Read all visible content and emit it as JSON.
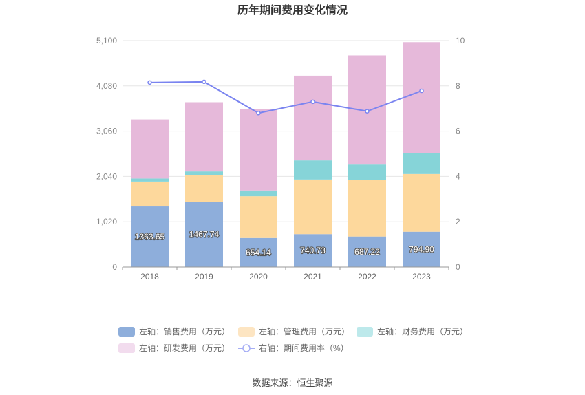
{
  "chart_data": {
    "type": "bar",
    "title": "历年期间费用变化情况",
    "categories": [
      "2018",
      "2019",
      "2020",
      "2021",
      "2022",
      "2023"
    ],
    "y_left": {
      "ticks": [
        "0",
        "1,020",
        "2,040",
        "3,060",
        "4,080",
        "5,100"
      ],
      "ylim": [
        0,
        5100
      ]
    },
    "y_right": {
      "ticks": [
        "0",
        "2",
        "4",
        "6",
        "8",
        "10"
      ],
      "ylim": [
        0,
        10
      ]
    },
    "stacked": true,
    "series": [
      {
        "name": "左轴：销售费用（万元）",
        "axis": "left",
        "color": "#8eaedb",
        "values": [
          1363.65,
          1467.74,
          654.14,
          740.73,
          687.22,
          794.9
        ],
        "show_labels": true
      },
      {
        "name": "左轴：管理费用（万元）",
        "axis": "left",
        "color": "#fdd89c",
        "values": [
          560,
          600,
          940,
          1230,
          1270,
          1300
        ],
        "show_labels": false
      },
      {
        "name": "左轴：财务费用（万元）",
        "axis": "left",
        "color": "#86d4d8",
        "values": [
          70,
          85,
          130,
          430,
          350,
          470
        ],
        "show_labels": false
      },
      {
        "name": "左轴：研发费用（万元）",
        "axis": "left",
        "color": "#e6b9da",
        "values": [
          1330,
          1560,
          1830,
          1910,
          2460,
          2500
        ],
        "show_labels": false
      }
    ],
    "line_series": {
      "name": "右轴：期间费用率（%）",
      "axis": "right",
      "type": "line",
      "color": "#7a84f0",
      "values": [
        8.15,
        8.18,
        6.8,
        7.3,
        6.88,
        7.78
      ]
    },
    "legend_position": "bottom",
    "grid": true
  },
  "legend_items": [
    {
      "label": "左轴：销售费用（万元）",
      "color": "#8eaedb",
      "kind": "bar"
    },
    {
      "label": "左轴：管理费用（万元）",
      "color": "#fde5c2",
      "kind": "bar"
    },
    {
      "label": "左轴：财务费用（万元）",
      "color": "#bde9eb",
      "kind": "bar"
    },
    {
      "label": "左轴：研发费用（万元）",
      "color": "#f2dcee",
      "kind": "bar"
    },
    {
      "label": "右轴：期间费用率（%）",
      "color": "#a5adf5",
      "kind": "line"
    }
  ],
  "source": "数据来源：恒生聚源"
}
